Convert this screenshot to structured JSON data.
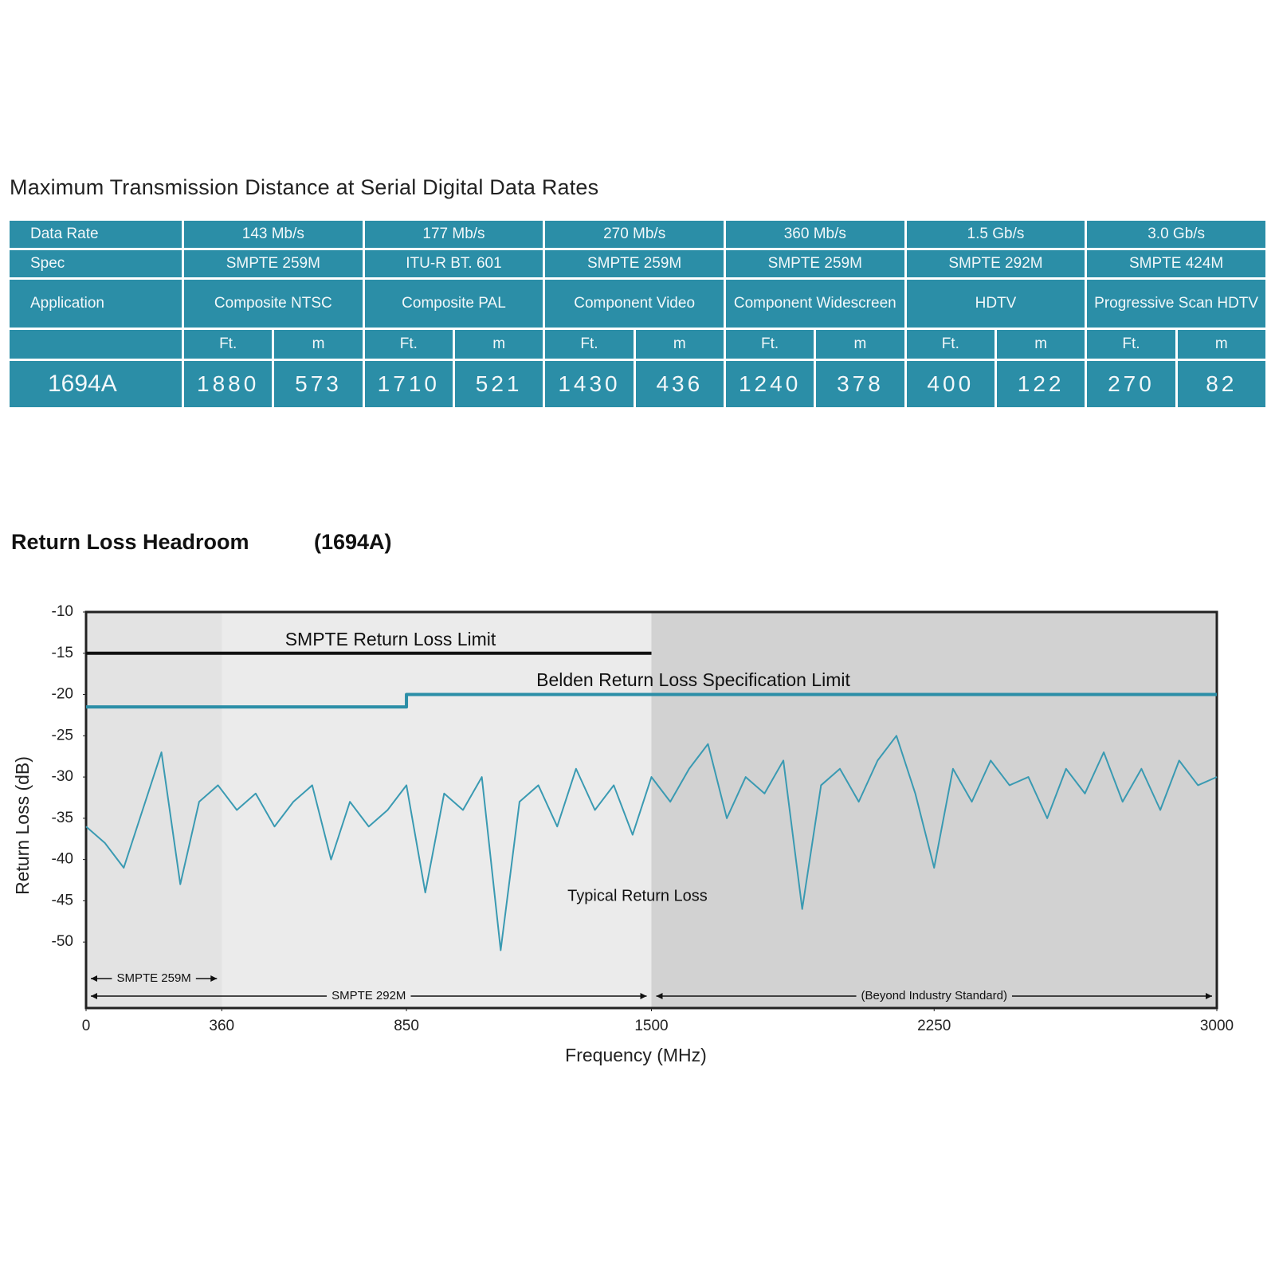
{
  "table": {
    "title": "Maximum Transmission Distance at Serial Digital Data Rates",
    "header_rows": [
      [
        "Data Rate",
        "143 Mb/s",
        "177 Mb/s",
        "270 Mb/s",
        "360 Mb/s",
        "1.5 Gb/s",
        "3.0 Gb/s"
      ],
      [
        "Spec",
        "SMPTE 259M",
        "ITU-R BT. 601",
        "SMPTE 259M",
        "SMPTE 259M",
        "SMPTE 292M",
        "SMPTE 424M"
      ],
      [
        "Application",
        "Composite NTSC",
        "Composite PAL",
        "Component Video",
        "Component Widescreen",
        "HDTV",
        "Progressive Scan HDTV"
      ]
    ],
    "unit_row": [
      "Ft.",
      "m",
      "Ft.",
      "m",
      "Ft.",
      "m",
      "Ft.",
      "m",
      "Ft.",
      "m",
      "Ft.",
      "m"
    ],
    "data_row": {
      "label": "1694A",
      "values": [
        1880,
        573,
        1710,
        521,
        1430,
        436,
        1240,
        378,
        400,
        122,
        270,
        82
      ]
    }
  },
  "chart_data": {
    "type": "line",
    "title": "Return Loss Headroom",
    "subtitle": "(1694A)",
    "x_label": "Frequency (MHz)",
    "y_label": "Return Loss (dB)",
    "xlim": [
      0,
      3000
    ],
    "xticks": [
      0,
      360,
      850,
      1500,
      2250,
      3000
    ],
    "ylim": [
      -58,
      -10
    ],
    "yticks": [
      -10,
      -15,
      -20,
      -25,
      -30,
      -35,
      -40,
      -45,
      -50
    ],
    "regions": [
      {
        "label": "SMPTE 259M",
        "x": [
          0,
          360
        ],
        "color": "#e3e3e3"
      },
      {
        "label": "SMPTE 292M",
        "x": [
          0,
          1500
        ],
        "color": "#ebebeb"
      },
      {
        "label": "(Beyond Industry Standard)",
        "x": [
          1500,
          3000
        ],
        "color": "#d2d2d2"
      }
    ],
    "series": [
      {
        "name": "SMPTE Return Loss Limit",
        "color": "#111111",
        "x": [
          0,
          1500
        ],
        "values": [
          -15,
          -15
        ]
      },
      {
        "name": "Belden Return Loss Specification Limit",
        "color": "#2b8ea7",
        "x": [
          0,
          850,
          850,
          3000
        ],
        "values": [
          -21.5,
          -21.5,
          -20,
          -20
        ]
      },
      {
        "name": "Typical Return Loss",
        "color": "#3a9ab2",
        "x": [
          0,
          50,
          100,
          150,
          200,
          250,
          300,
          350,
          400,
          450,
          500,
          550,
          600,
          650,
          700,
          750,
          800,
          850,
          900,
          950,
          1000,
          1050,
          1100,
          1150,
          1200,
          1250,
          1300,
          1350,
          1400,
          1450,
          1500,
          1550,
          1600,
          1650,
          1700,
          1750,
          1800,
          1850,
          1900,
          1950,
          2000,
          2050,
          2100,
          2150,
          2200,
          2250,
          2300,
          2350,
          2400,
          2450,
          2500,
          2550,
          2600,
          2650,
          2700,
          2750,
          2800,
          2850,
          2900,
          2950,
          3000
        ],
        "values": [
          -36,
          -38,
          -41,
          -34,
          -27,
          -43,
          -33,
          -31,
          -34,
          -32,
          -36,
          -33,
          -31,
          -40,
          -33,
          -36,
          -34,
          -31,
          -44,
          -32,
          -34,
          -30,
          -51,
          -33,
          -31,
          -36,
          -29,
          -34,
          -31,
          -37,
          -30,
          -33,
          -29,
          -26,
          -35,
          -30,
          -32,
          -28,
          -46,
          -31,
          -29,
          -33,
          -28,
          -25,
          -32,
          -41,
          -29,
          -33,
          -28,
          -31,
          -30,
          -35,
          -29,
          -32,
          -27,
          -33,
          -29,
          -34,
          -28,
          -31,
          -30
        ]
      }
    ]
  }
}
